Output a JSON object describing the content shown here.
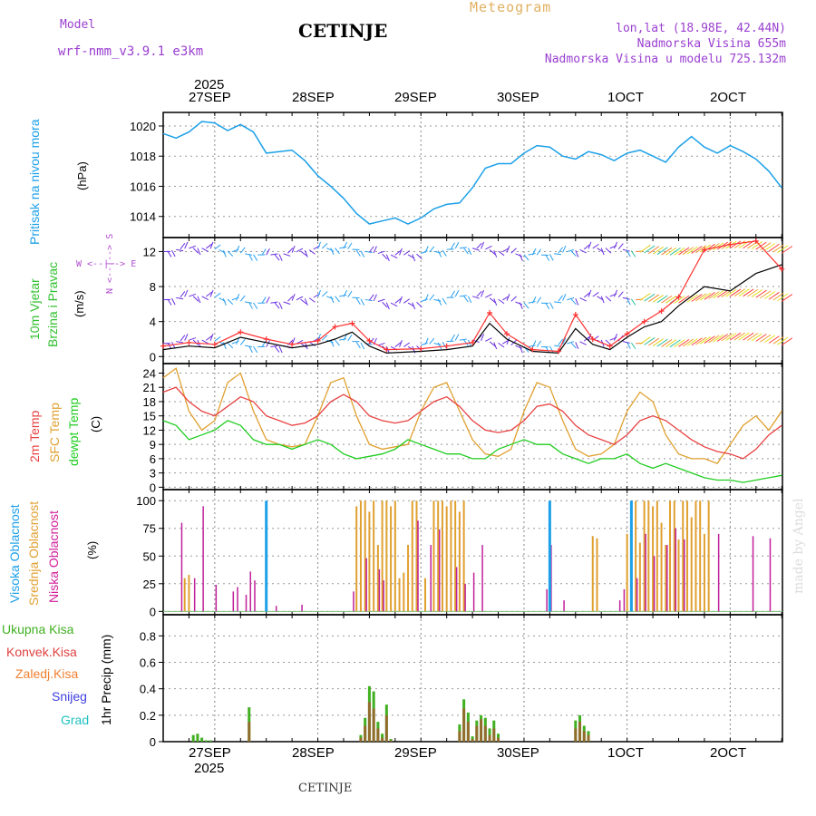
{
  "header": {
    "model_label": "Model",
    "model_name": "wrf-nmm_v3.9.1 e3km",
    "station": "CETINJE",
    "meteogram": "Meteogram",
    "lonlat": "lon,lat (18.98E, 42.44N)",
    "elevation": "Nadmorska Visina 655m",
    "model_elevation": "Nadmorska Visina u modelu 725.132m",
    "footer_station": "CETINJE",
    "credit": "made by Angel"
  },
  "time_axis": {
    "year": "2025",
    "days": [
      "27SEP",
      "28SEP",
      "29SEP",
      "30SEP",
      "1OCT",
      "2OCT"
    ]
  },
  "colors": {
    "pressure": "#1ca0e8",
    "temp2m": "#e84040",
    "sfc_temp": "#e0a030",
    "dewpt": "#20cc20",
    "wind_speed": "#000000",
    "gust": "#ff3030",
    "high_cloud": "#1ca0e8",
    "mid_cloud": "#e0a030",
    "low_cloud": "#c0209a",
    "precip_total": "#40b020",
    "precip_conv": "#e04040"
  },
  "chart_data": [
    {
      "type": "line",
      "name": "pressure",
      "ylabel_main": "Pritisak na nivou mora",
      "ylabel_unit": "(hPa)",
      "yticks": [
        "1014",
        "1016",
        "1018",
        "1020"
      ],
      "ylim": [
        1012.6,
        1020.9
      ],
      "x_hours": [
        0,
        3,
        6,
        9,
        12,
        15,
        18,
        21,
        24,
        27,
        30,
        33,
        36,
        39,
        42,
        45,
        48,
        51,
        54,
        57,
        60,
        63,
        66,
        69,
        72,
        75,
        78,
        81,
        84,
        87,
        90,
        93,
        96,
        99,
        102,
        105,
        108,
        111,
        114,
        117,
        120,
        123,
        126,
        129,
        132,
        135,
        138,
        141,
        144
      ],
      "values": [
        1019.5,
        1019.2,
        1019.6,
        1020.3,
        1020.2,
        1019.7,
        1020.1,
        1019.6,
        1018.2,
        1018.3,
        1018.4,
        1017.7,
        1016.7,
        1016.0,
        1015.2,
        1014.2,
        1013.5,
        1013.7,
        1013.9,
        1013.5,
        1013.9,
        1014.5,
        1014.8,
        1014.9,
        1015.9,
        1017.2,
        1017.5,
        1017.5,
        1018.2,
        1018.7,
        1018.6,
        1018.0,
        1017.8,
        1018.3,
        1018.1,
        1017.7,
        1018.2,
        1018.4,
        1018.0,
        1017.6,
        1018.6,
        1019.3,
        1018.6,
        1018.2,
        1018.7,
        1018.3,
        1017.8,
        1017.0,
        1015.9
      ]
    },
    {
      "type": "line",
      "name": "wind",
      "ylabel_main": "10m Vjetar",
      "ylabel_sub": "Brzina i Pravac",
      "ylabel_unit": "(m/s)",
      "compass": "W <--|--> E",
      "compass_ns": "N <--|--> S",
      "yticks": [
        "0",
        "4",
        "8",
        "12"
      ],
      "ylim": [
        -0.8,
        13.6
      ],
      "x_hours": [
        0,
        6,
        12,
        18,
        24,
        30,
        36,
        40,
        44,
        48,
        52,
        60,
        66,
        72,
        76,
        80,
        86,
        92,
        96,
        100,
        104,
        108,
        112,
        116,
        120,
        126,
        132,
        138,
        144
      ],
      "speed": [
        0.8,
        1.2,
        1.0,
        2.2,
        1.6,
        1.0,
        1.4,
        2.0,
        2.8,
        1.2,
        0.4,
        0.6,
        0.8,
        1.2,
        3.8,
        2.0,
        0.6,
        0.4,
        3.2,
        1.4,
        0.8,
        2.2,
        3.4,
        4.0,
        5.8,
        8.0,
        7.5,
        9.5,
        10.5
      ],
      "gust": [
        1.2,
        1.6,
        1.4,
        2.8,
        2.0,
        1.4,
        1.8,
        3.4,
        3.8,
        1.8,
        0.8,
        0.9,
        1.2,
        1.6,
        5.0,
        2.6,
        0.8,
        0.6,
        4.8,
        2.0,
        1.2,
        2.6,
        4.0,
        5.2,
        6.8,
        12.2,
        12.8,
        13.2,
        10.0
      ]
    },
    {
      "type": "line",
      "name": "temperature",
      "ylabel_main": "2m Temp",
      "ylabel_sfc": "SFC Temp",
      "ylabel_dew": "dewpt Temp",
      "ylabel_unit": "(C)",
      "yticks": [
        "0",
        "3",
        "6",
        "9",
        "12",
        "15",
        "18",
        "21",
        "24"
      ],
      "ylim": [
        -0.5,
        26.0
      ],
      "x_hours": [
        0,
        3,
        6,
        9,
        12,
        15,
        18,
        21,
        24,
        27,
        30,
        33,
        36,
        39,
        42,
        45,
        48,
        51,
        54,
        57,
        60,
        63,
        66,
        69,
        72,
        75,
        78,
        81,
        84,
        87,
        90,
        93,
        96,
        99,
        102,
        105,
        108,
        111,
        114,
        117,
        120,
        123,
        126,
        129,
        132,
        135,
        138,
        141,
        144
      ],
      "t2m": [
        20,
        21,
        18,
        16,
        15,
        17,
        19,
        18,
        15,
        14,
        13,
        13.5,
        15,
        18,
        19.5,
        18,
        15,
        14,
        13.5,
        14,
        16,
        18,
        19,
        17,
        14,
        12,
        11.5,
        12,
        14,
        17,
        17.5,
        16,
        13,
        11,
        10,
        9,
        11,
        14,
        15,
        14,
        12,
        10,
        8.5,
        7.5,
        7,
        6,
        8,
        11,
        13
      ],
      "sfc": [
        23,
        25,
        16,
        12,
        14,
        22,
        24,
        16,
        10,
        9,
        8.5,
        9,
        15,
        22,
        23,
        15,
        9,
        8,
        8.5,
        9,
        16,
        21,
        22,
        16,
        10,
        7,
        6.5,
        8,
        16,
        22,
        21,
        14,
        8,
        6.5,
        7,
        9,
        16,
        20,
        18,
        11,
        7,
        6,
        6,
        5,
        9,
        13,
        15,
        12,
        16
      ],
      "dew": [
        14,
        13,
        10,
        11,
        12,
        14,
        13,
        10,
        9,
        9,
        8,
        9,
        10,
        9,
        7,
        6,
        6.5,
        7,
        8,
        10,
        9,
        8,
        7,
        7,
        6,
        6,
        8,
        9,
        10,
        9,
        9,
        7,
        6,
        5,
        6,
        6,
        7,
        5,
        4,
        5,
        4,
        3,
        2,
        1.5,
        1.5,
        1,
        1.5,
        2,
        2.5
      ]
    },
    {
      "type": "bar",
      "name": "cloud_cover",
      "ylabel_high": "Visoka Oblacnost",
      "ylabel_mid": "Srednja Oblacnost",
      "ylabel_low": "Niska Oblacnost",
      "ylabel_unit": "(%)",
      "yticks": [
        "0",
        "25",
        "50",
        "75",
        "100"
      ],
      "ylim": [
        -3,
        110
      ],
      "high_hours": [
        24,
        90,
        109
      ],
      "high_values": [
        100,
        100,
        100
      ],
      "mid_hours": [
        5,
        6,
        45,
        46,
        47,
        48,
        49,
        50,
        51,
        52,
        53,
        54,
        55,
        56,
        57,
        58,
        59,
        61,
        63,
        64,
        65,
        66,
        67,
        68,
        69,
        70,
        100,
        101,
        108,
        109,
        110,
        111,
        112,
        113,
        114,
        115,
        116,
        117,
        118,
        119,
        120,
        121,
        122,
        123,
        124,
        125,
        126,
        127
      ],
      "mid_values": [
        30,
        33,
        95,
        100,
        100,
        90,
        100,
        60,
        100,
        100,
        95,
        100,
        30,
        35,
        60,
        100,
        100,
        30,
        100,
        100,
        100,
        95,
        100,
        100,
        90,
        100,
        68,
        66,
        70,
        75,
        100,
        62,
        100,
        100,
        95,
        100,
        80,
        60,
        100,
        100,
        65,
        100,
        100,
        85,
        100,
        100,
        70,
        100
      ],
      "low_hours": [
        4,
        7,
        9,
        12,
        16,
        17,
        19,
        20,
        21,
        26,
        32,
        44,
        47,
        50,
        51,
        59,
        62,
        64,
        68,
        70,
        72,
        74,
        89,
        90,
        93,
        106,
        107,
        110,
        112,
        114,
        117,
        119,
        121,
        129,
        137,
        141
      ],
      "low_values": [
        80,
        30,
        95,
        24,
        18,
        22,
        15,
        36,
        28,
        5,
        6,
        18,
        48,
        38,
        28,
        82,
        60,
        74,
        40,
        25,
        35,
        60,
        20,
        60,
        10,
        10,
        20,
        30,
        70,
        50,
        60,
        75,
        65,
        70,
        68,
        66
      ]
    },
    {
      "type": "bar",
      "name": "precipitation",
      "ylabel_total": "Ukupna Kisa",
      "ylabel_conv": "Konvek.Kisa",
      "ylabel_frz": "Zaledj.Kisa",
      "ylabel_snow": "Snijeg",
      "ylabel_grad": "Grad",
      "ylabel_unit": "1hr Precip (mm)",
      "yticks": [
        "0",
        "0.2",
        "0.4",
        "0.6",
        "0.8"
      ],
      "ylim": [
        0,
        0.96
      ],
      "x_hours": [
        7,
        8,
        9,
        10,
        11,
        20,
        46,
        47,
        48,
        49,
        50,
        51,
        52,
        53,
        69,
        70,
        71,
        72,
        73,
        74,
        75,
        76,
        77,
        78,
        96,
        97,
        98,
        99
      ],
      "total": [
        0.05,
        0.06,
        0.03,
        0.01,
        0.01,
        0.26,
        0.05,
        0.18,
        0.42,
        0.38,
        0.15,
        0.06,
        0.28,
        0.02,
        0.13,
        0.32,
        0.22,
        0.04,
        0.16,
        0.2,
        0.18,
        0.1,
        0.16,
        0.06,
        0.16,
        0.2,
        0.12,
        0.08
      ],
      "conv": [
        0,
        0,
        0,
        0,
        0,
        0.15,
        0.03,
        0.12,
        0.3,
        0.25,
        0.1,
        0.03,
        0.2,
        0.01,
        0.08,
        0.25,
        0.15,
        0.02,
        0.12,
        0.17,
        0.12,
        0.05,
        0.1,
        0.03,
        0.1,
        0.15,
        0.08,
        0.05
      ]
    }
  ]
}
